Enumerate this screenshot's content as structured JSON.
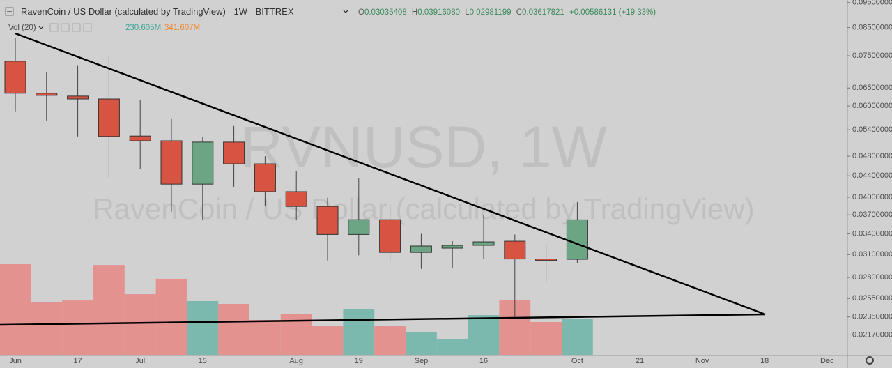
{
  "header": {
    "title": "RavenCoin / US Dollar (calculated by TradingView)",
    "interval": "1W",
    "exchange": "BITTREX",
    "ohlc_prefixes": [
      "O",
      "H",
      "L",
      "C"
    ],
    "ohlc_values": [
      "0.03035408",
      "0.03916080",
      "0.02981199",
      "0.03617821"
    ],
    "change": "+0.00586131 (+19.33%)",
    "volume_title": "Vol (20)",
    "volume_value": "230.605M",
    "volume_ma": "341.607M",
    "watermark_symbol": "RVNUSD, 1W"
  },
  "chart_data": {
    "type": "candlestick",
    "categories": [
      "Jun",
      null,
      "17",
      null,
      "Jul",
      null,
      "15",
      null,
      null,
      "Aug",
      null,
      "19",
      null,
      "Sep",
      null,
      "16",
      null,
      null,
      "Oct",
      null,
      "21",
      null,
      "Nov",
      null,
      "18",
      null,
      "Dec"
    ],
    "open": [
      0.0732,
      0.0635,
      0.0627,
      0.0619,
      0.0525,
      0.0514,
      0.0424,
      0.0511,
      0.0464,
      0.041,
      0.0384,
      0.0339,
      0.0362,
      0.0313,
      0.0319,
      0.0323,
      0.0329,
      0.0304,
      0.03035408,
      null,
      null,
      null,
      null,
      null,
      null,
      null,
      null
    ],
    "high": [
      0.0811,
      0.0697,
      0.0719,
      0.075,
      0.0617,
      0.0566,
      0.0522,
      0.0549,
      0.048,
      0.045,
      0.0399,
      0.0435,
      0.0387,
      0.034,
      0.0329,
      0.037,
      0.0339,
      0.0324,
      0.0391608,
      null,
      null,
      null,
      null,
      null,
      null,
      null,
      null
    ],
    "low": [
      0.0586,
      0.0562,
      0.0524,
      0.0435,
      0.0453,
      0.0375,
      0.0361,
      0.0419,
      0.0385,
      0.0361,
      0.0302,
      0.0309,
      0.0302,
      0.0291,
      0.0292,
      0.0304,
      0.0235,
      0.0275,
      0.02981199,
      null,
      null,
      null,
      null,
      null,
      null,
      null,
      null
    ],
    "close": [
      0.0635,
      0.0629,
      0.0619,
      0.0524,
      0.0514,
      0.0424,
      0.0511,
      0.0464,
      0.041,
      0.0384,
      0.0339,
      0.0362,
      0.0313,
      0.0322,
      0.0323,
      0.0328,
      0.0304,
      0.0302,
      0.03617821,
      null,
      null,
      null,
      null,
      null,
      null,
      null,
      null
    ],
    "volume": [
      581,
      341,
      350,
      576,
      390,
      488,
      346,
      328,
      226,
      266,
      186,
      293,
      186,
      151,
      106,
      257,
      355,
      213,
      230.605,
      null,
      null,
      null,
      null,
      null,
      null,
      null,
      null
    ],
    "colors": {
      "up": "#6ba583",
      "down": "#d75442",
      "volume_up": "#7bb8ae",
      "volume_down": "#e3928f"
    },
    "log_scale": true,
    "ylim": [
      0.0198,
      0.0961
    ],
    "yticks": [
      {
        "value": 0.095,
        "label": "0.09500000"
      },
      {
        "value": 0.085,
        "label": "0.08500000"
      },
      {
        "value": 0.075,
        "label": "0.07500000"
      },
      {
        "value": 0.065,
        "label": "0.06500000"
      },
      {
        "value": 0.06,
        "label": "0.06000000"
      },
      {
        "value": 0.054,
        "label": "0.05400000"
      },
      {
        "value": 0.048,
        "label": "0.04800000"
      },
      {
        "value": 0.044,
        "label": "0.04400000"
      },
      {
        "value": 0.04,
        "label": "0.04000000"
      },
      {
        "value": 0.037,
        "label": "0.03700000"
      },
      {
        "value": 0.034,
        "label": "0.03400000"
      },
      {
        "value": 0.031,
        "label": "0.03100000"
      },
      {
        "value": 0.028,
        "label": "0.02800000"
      },
      {
        "value": 0.0255,
        "label": "0.02550000"
      },
      {
        "value": 0.0235,
        "label": "0.02350000"
      },
      {
        "value": 0.0217,
        "label": "0.02170000"
      }
    ]
  }
}
